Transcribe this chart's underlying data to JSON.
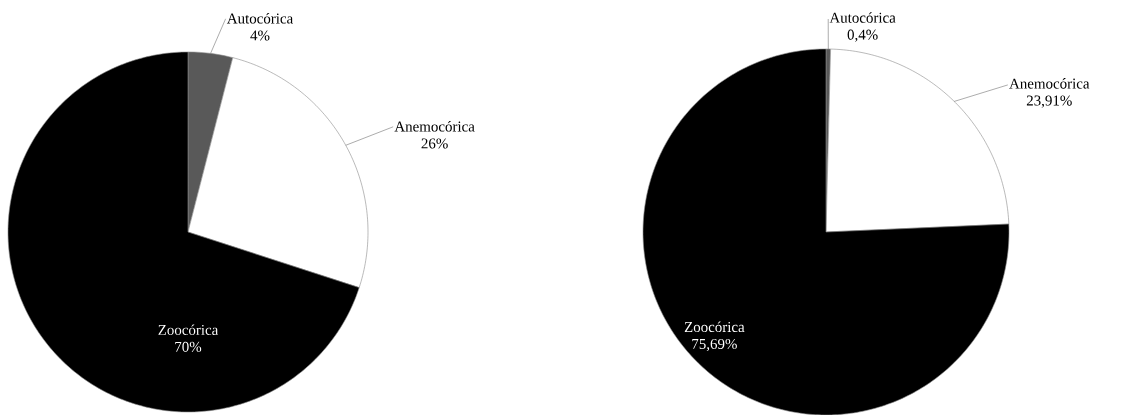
{
  "chart_data": [
    {
      "type": "pie",
      "categories": [
        "Autocórica",
        "Anemocórica",
        "Zoocórica"
      ],
      "values": [
        4,
        26,
        70
      ],
      "value_labels": [
        "4%",
        "26%",
        "70%"
      ],
      "colors": [
        "#595959",
        "#ffffff",
        "#000000"
      ]
    },
    {
      "type": "pie",
      "categories": [
        "Autocórica",
        "Anemocórica",
        "Zoocórica"
      ],
      "values": [
        0.4,
        23.91,
        75.69
      ],
      "value_labels": [
        "0,4%",
        "23,91%",
        "75,69%"
      ],
      "colors": [
        "#595959",
        "#ffffff",
        "#000000"
      ]
    }
  ]
}
